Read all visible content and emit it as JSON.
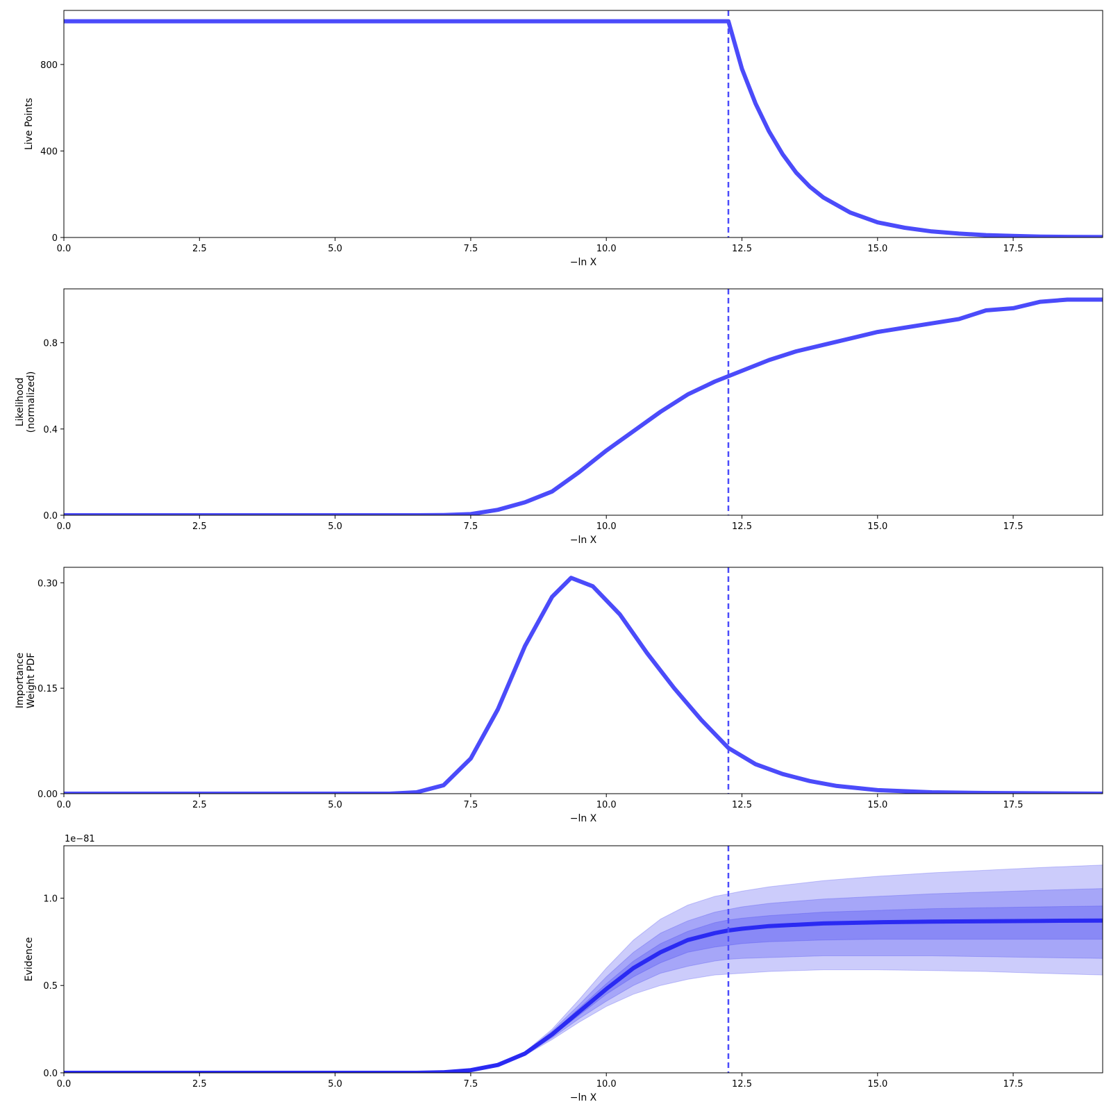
{
  "colors": {
    "line": "#4b4bfa",
    "evidence_line": "#2a2af2",
    "band": "#3333ee",
    "axis": "#000000"
  },
  "chart_data": [
    {
      "type": "line",
      "xlabel": "−ln X",
      "ylabel": [
        "Live Points"
      ],
      "xlim": [
        0,
        19.15
      ],
      "ylim": [
        0,
        1050
      ],
      "xticks": [
        0,
        2.5,
        5,
        7.5,
        10,
        12.5,
        15,
        17.5
      ],
      "xticklabels": [
        "0.0",
        "2.5",
        "5.0",
        "7.5",
        "10.0",
        "12.5",
        "15.0",
        "17.5"
      ],
      "yticks": [
        0,
        400,
        800
      ],
      "yticklabels": [
        "0",
        "400",
        "800"
      ],
      "vline_x": 12.25,
      "series": [
        {
          "x": [
            0,
            12.25,
            12.5,
            12.75,
            13,
            13.25,
            13.5,
            13.75,
            14,
            14.5,
            15,
            15.5,
            16,
            16.5,
            17,
            17.5,
            18,
            18.5,
            19.15
          ],
          "y": [
            1000,
            1000,
            780,
            620,
            490,
            385,
            300,
            235,
            185,
            115,
            70,
            45,
            28,
            18,
            11,
            7,
            4,
            3,
            2
          ]
        }
      ]
    },
    {
      "type": "line",
      "xlabel": "−ln X",
      "ylabel": [
        "Likelihood",
        "(normalized)"
      ],
      "xlim": [
        0,
        19.15
      ],
      "ylim": [
        0,
        1.05
      ],
      "xticks": [
        0,
        2.5,
        5,
        7.5,
        10,
        12.5,
        15,
        17.5
      ],
      "xticklabels": [
        "0.0",
        "2.5",
        "5.0",
        "7.5",
        "10.0",
        "12.5",
        "15.0",
        "17.5"
      ],
      "yticks": [
        0,
        0.4,
        0.8
      ],
      "yticklabels": [
        "0.0",
        "0.4",
        "0.8"
      ],
      "vline_x": 12.25,
      "series": [
        {
          "x": [
            0,
            6.5,
            7,
            7.5,
            8,
            8.5,
            9,
            9.5,
            10,
            10.5,
            11,
            11.5,
            12,
            12.5,
            13,
            13.5,
            14,
            14.5,
            15,
            15.5,
            16,
            16.5,
            17,
            17.5,
            18,
            18.5,
            19.15
          ],
          "y": [
            0,
            0,
            0.001,
            0.005,
            0.025,
            0.06,
            0.11,
            0.2,
            0.3,
            0.39,
            0.48,
            0.56,
            0.62,
            0.67,
            0.72,
            0.76,
            0.79,
            0.82,
            0.85,
            0.87,
            0.89,
            0.91,
            0.95,
            0.96,
            0.99,
            1.0,
            1.0
          ]
        }
      ]
    },
    {
      "type": "line",
      "xlabel": "−ln X",
      "ylabel": [
        "Importance",
        "Weight PDF"
      ],
      "xlim": [
        0,
        19.15
      ],
      "ylim": [
        0,
        0.322
      ],
      "xticks": [
        0,
        2.5,
        5,
        7.5,
        10,
        12.5,
        15,
        17.5
      ],
      "xticklabels": [
        "0.0",
        "2.5",
        "5.0",
        "7.5",
        "10.0",
        "12.5",
        "15.0",
        "17.5"
      ],
      "yticks": [
        0,
        0.15,
        0.3
      ],
      "yticklabels": [
        "0.00",
        "0.15",
        "0.30"
      ],
      "vline_x": 12.25,
      "series": [
        {
          "x": [
            0,
            6,
            6.5,
            7,
            7.5,
            8,
            8.5,
            9,
            9.35,
            9.75,
            10.25,
            10.75,
            11.25,
            11.75,
            12.25,
            12.75,
            13.25,
            13.75,
            14.25,
            15,
            16,
            17,
            19.15
          ],
          "y": [
            0,
            0,
            0.002,
            0.012,
            0.05,
            0.12,
            0.21,
            0.28,
            0.307,
            0.295,
            0.255,
            0.2,
            0.15,
            0.105,
            0.065,
            0.042,
            0.028,
            0.018,
            0.011,
            0.005,
            0.002,
            0.001,
            0
          ]
        }
      ]
    },
    {
      "type": "area",
      "xlabel": "−ln X",
      "ylabel": [
        "Evidence"
      ],
      "offset_text": "1e−81",
      "xlim": [
        0,
        19.15
      ],
      "ylim": [
        0,
        1.3
      ],
      "xticks": [
        0,
        2.5,
        5,
        7.5,
        10,
        12.5,
        15,
        17.5
      ],
      "xticklabels": [
        "0.0",
        "2.5",
        "5.0",
        "7.5",
        "10.0",
        "12.5",
        "15.0",
        "17.5"
      ],
      "yticks": [
        0,
        0.5,
        1.0
      ],
      "yticklabels": [
        "0.0",
        "0.5",
        "1.0"
      ],
      "vline_x": 12.25,
      "x": [
        0,
        6.5,
        7,
        7.5,
        8,
        8.5,
        9,
        9.5,
        10,
        10.5,
        11,
        11.5,
        12,
        12.25,
        12.5,
        13,
        14,
        15,
        16,
        17,
        18,
        19.15
      ],
      "mean": [
        0,
        0,
        0.003,
        0.015,
        0.045,
        0.11,
        0.22,
        0.35,
        0.48,
        0.6,
        0.69,
        0.76,
        0.8,
        0.815,
        0.825,
        0.84,
        0.855,
        0.862,
        0.866,
        0.868,
        0.87,
        0.872
      ],
      "bands": [
        {
          "lower": [
            0,
            0,
            0.003,
            0.014,
            0.042,
            0.1,
            0.19,
            0.29,
            0.38,
            0.45,
            0.5,
            0.535,
            0.56,
            0.565,
            0.57,
            0.58,
            0.59,
            0.59,
            0.585,
            0.58,
            0.57,
            0.56
          ],
          "upper": [
            0,
            0,
            0.003,
            0.016,
            0.048,
            0.12,
            0.25,
            0.42,
            0.6,
            0.76,
            0.88,
            0.96,
            1.01,
            1.025,
            1.04,
            1.065,
            1.1,
            1.125,
            1.145,
            1.16,
            1.175,
            1.19
          ]
        },
        {
          "lower": [
            0,
            0,
            0.003,
            0.014,
            0.043,
            0.103,
            0.2,
            0.31,
            0.41,
            0.5,
            0.57,
            0.61,
            0.64,
            0.65,
            0.655,
            0.66,
            0.67,
            0.67,
            0.67,
            0.665,
            0.66,
            0.655
          ],
          "upper": [
            0,
            0,
            0.003,
            0.015,
            0.047,
            0.117,
            0.24,
            0.39,
            0.55,
            0.69,
            0.8,
            0.87,
            0.92,
            0.935,
            0.95,
            0.97,
            0.995,
            1.01,
            1.025,
            1.035,
            1.045,
            1.055
          ]
        },
        {
          "lower": [
            0,
            0,
            0.003,
            0.015,
            0.044,
            0.106,
            0.21,
            0.33,
            0.45,
            0.55,
            0.63,
            0.69,
            0.72,
            0.73,
            0.74,
            0.75,
            0.76,
            0.765,
            0.765,
            0.765,
            0.765,
            0.765
          ],
          "upper": [
            0,
            0,
            0.003,
            0.015,
            0.046,
            0.114,
            0.23,
            0.37,
            0.51,
            0.64,
            0.74,
            0.81,
            0.86,
            0.875,
            0.885,
            0.9,
            0.92,
            0.93,
            0.94,
            0.945,
            0.95,
            0.955
          ]
        }
      ]
    }
  ]
}
